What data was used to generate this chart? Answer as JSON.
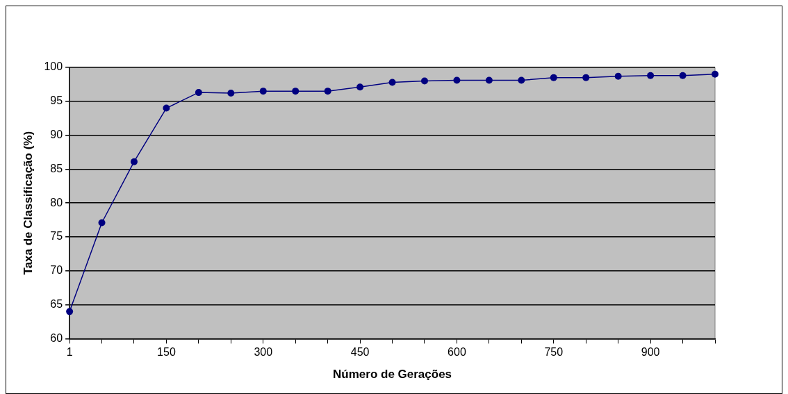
{
  "chart_data": {
    "type": "line",
    "xlabel": "Número de Gerações",
    "ylabel": "Taxa de Classificação (%)",
    "categories": [
      "1",
      null,
      null,
      "150",
      null,
      null,
      "300",
      null,
      null,
      "450",
      null,
      null,
      "600",
      null,
      null,
      "750",
      null,
      null,
      "900",
      null,
      null
    ],
    "series": [
      {
        "color": "#000080",
        "values": [
          64.0,
          77.1,
          86.1,
          94.0,
          96.3,
          96.2,
          96.5,
          96.5,
          96.5,
          97.1,
          97.8,
          98.0,
          98.1,
          98.1,
          98.1,
          98.5,
          98.5,
          98.7,
          98.8,
          98.8,
          99.0
        ]
      }
    ],
    "ylim": [
      60,
      100
    ],
    "yticks": [
      60,
      65,
      70,
      75,
      80,
      85,
      90,
      95,
      100
    ],
    "grid": "y",
    "legend": false,
    "marker": "circle",
    "line_style": "solid"
  }
}
